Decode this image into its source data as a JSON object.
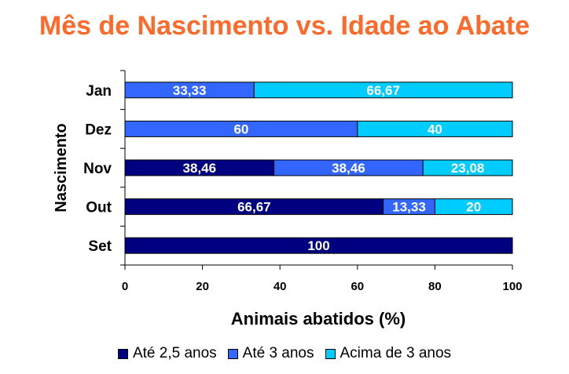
{
  "chart_data": {
    "type": "bar",
    "orientation": "horizontal",
    "stacked": true,
    "title": "Mês de Nascimento vs. Idade ao Abate",
    "xlabel": "Animais abatidos (%)",
    "ylabel": "Nascimento",
    "categories": [
      "Jan",
      "Dez",
      "Nov",
      "Out",
      "Set"
    ],
    "xlim": [
      0,
      100
    ],
    "xticks": [
      0,
      20,
      40,
      60,
      80,
      100
    ],
    "series": [
      {
        "name": "Até 2,5 anos",
        "color": "#000080",
        "values": [
          0,
          0,
          38.46,
          66.67,
          100
        ],
        "labels": [
          "",
          "",
          "38,46",
          "66,67",
          "100"
        ]
      },
      {
        "name": "Até 3 anos",
        "color": "#3366ff",
        "values": [
          33.33,
          60,
          38.46,
          13.33,
          0
        ],
        "labels": [
          "33,33",
          "60",
          "38,46",
          "13,33",
          ""
        ]
      },
      {
        "name": "Acima de 3 anos",
        "color": "#00ccff",
        "values": [
          66.67,
          40,
          23.08,
          20,
          0
        ],
        "labels": [
          "66,67",
          "40",
          "23,08",
          "20",
          ""
        ]
      }
    ],
    "legend_position": "bottom",
    "grid": false
  }
}
